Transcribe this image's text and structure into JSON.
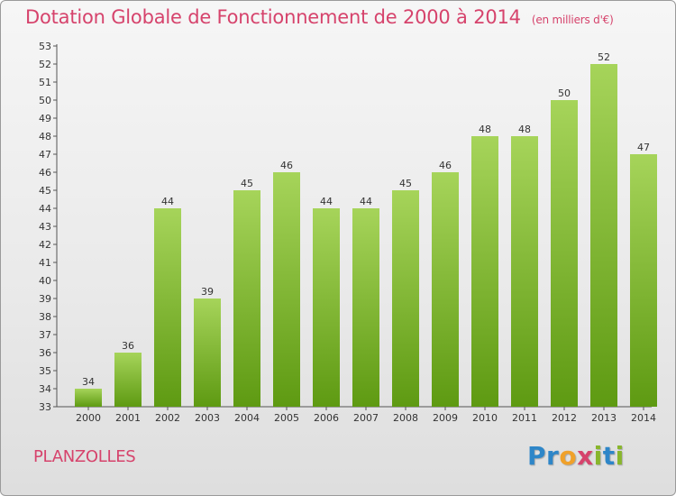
{
  "header": {
    "title": "Dotation Globale de Fonctionnement de 2000 à 2014",
    "subtitle": "(en milliers d'€)"
  },
  "commune": "PLANZOLLES",
  "brand": {
    "name": "Proxiti",
    "letters": [
      {
        "ch": "P",
        "color": "#2e86c8"
      },
      {
        "ch": "r",
        "color": "#2e86c8"
      },
      {
        "ch": "o",
        "color": "#f0a12a"
      },
      {
        "ch": "x",
        "color": "#d6436c"
      },
      {
        "ch": "i",
        "color": "#88b62c"
      },
      {
        "ch": "t",
        "color": "#2e86c8"
      },
      {
        "ch": "i",
        "color": "#88b62c"
      }
    ]
  },
  "chart_data": {
    "type": "bar",
    "title": "Dotation Globale de Fonctionnement de 2000 à 2014",
    "subtitle": "(en milliers d'€)",
    "categories": [
      "2000",
      "2001",
      "2002",
      "2003",
      "2004",
      "2005",
      "2006",
      "2007",
      "2008",
      "2009",
      "2010",
      "2011",
      "2012",
      "2013",
      "2014"
    ],
    "values": [
      34,
      36,
      44,
      39,
      45,
      46,
      44,
      44,
      45,
      46,
      48,
      48,
      50,
      52,
      47
    ],
    "ylim": [
      33,
      53
    ],
    "yticks": [
      33,
      34,
      35,
      36,
      37,
      38,
      39,
      40,
      41,
      42,
      43,
      44,
      45,
      46,
      47,
      48,
      49,
      50,
      51,
      52,
      53
    ],
    "grid": false,
    "bar_color_top": "#a6d45a",
    "bar_color_bottom": "#5e9a12"
  }
}
